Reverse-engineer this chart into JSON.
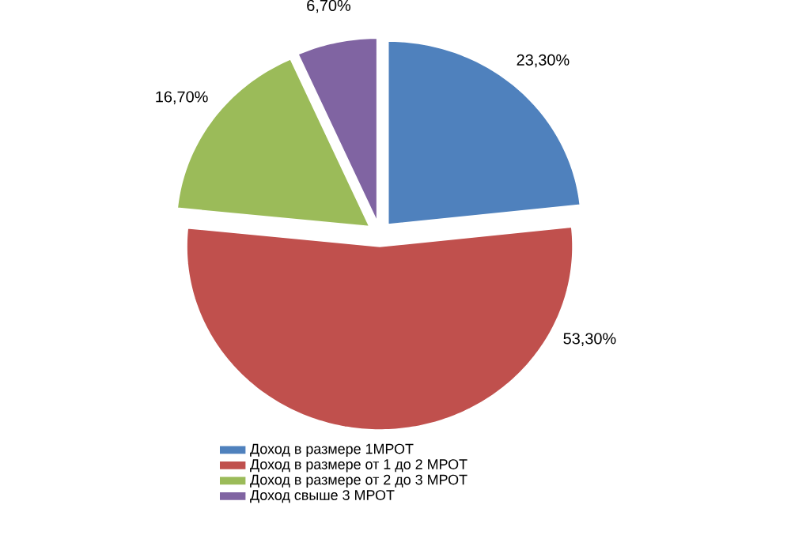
{
  "chart_data": {
    "type": "pie",
    "categories": [
      "Доход в размере 1МРОТ",
      "Доход в размере от 1 до 2 МРОТ",
      "Доход в размере от 2 до 3 МРОТ",
      "Доход свыше 3 МРОТ"
    ],
    "values": [
      23.3,
      53.3,
      16.7,
      6.7
    ],
    "value_labels": [
      "23,30%",
      "53,30%",
      "16,70%",
      "6,70%"
    ],
    "colors": [
      "#4f81bd",
      "#c0504d",
      "#9bbb59",
      "#8064a2"
    ],
    "legend": "bottom"
  }
}
